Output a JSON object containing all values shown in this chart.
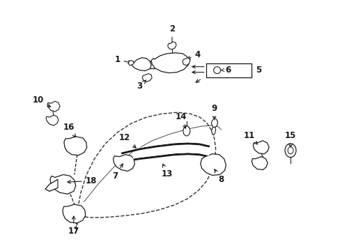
{
  "background_color": "#ffffff",
  "line_color": "#1a1a1a",
  "fig_width": 4.89,
  "fig_height": 3.6,
  "dpi": 100,
  "door": {
    "x": [
      0.33,
      0.34,
      0.355,
      0.375,
      0.4,
      0.425,
      0.455,
      0.485,
      0.51,
      0.535,
      0.555,
      0.57,
      0.582,
      0.59,
      0.595,
      0.595,
      0.59,
      0.58,
      0.565,
      0.545,
      0.52,
      0.493,
      0.465,
      0.435,
      0.402,
      0.37,
      0.34,
      0.315,
      0.295,
      0.278,
      0.265,
      0.255,
      0.248,
      0.245,
      0.245,
      0.248,
      0.255,
      0.265,
      0.278,
      0.295,
      0.315,
      0.33
    ],
    "y": [
      0.74,
      0.765,
      0.785,
      0.8,
      0.812,
      0.82,
      0.825,
      0.826,
      0.824,
      0.818,
      0.808,
      0.793,
      0.775,
      0.754,
      0.73,
      0.705,
      0.678,
      0.652,
      0.628,
      0.607,
      0.59,
      0.578,
      0.568,
      0.561,
      0.556,
      0.553,
      0.552,
      0.552,
      0.554,
      0.558,
      0.565,
      0.574,
      0.585,
      0.598,
      0.613,
      0.63,
      0.648,
      0.666,
      0.685,
      0.703,
      0.722,
      0.74
    ]
  }
}
